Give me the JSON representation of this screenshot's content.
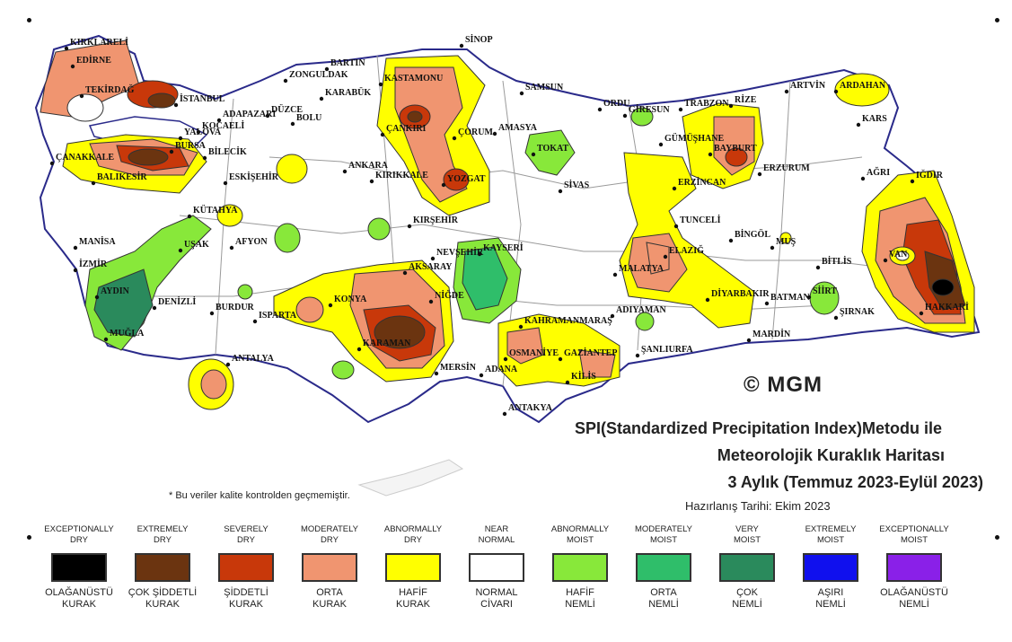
{
  "map": {
    "title_line1": "SPI(Standardized Precipitation Index)Metodu ile",
    "title_line2": "Meteorolojik Kuraklık Haritası",
    "title_line3": "3 Aylık (Temmuz 2023-Eylül 2023)",
    "prepared_date": "Hazırlanış Tarihi: Ekim 2023",
    "note": "* Bu veriler kalite kontrolden geçmemiştir.",
    "copyright": "© MGM",
    "cities": [
      {
        "name": "KIRKLARELİ"
      },
      {
        "name": "EDİRNE"
      },
      {
        "name": "TEKİRDAĞ"
      },
      {
        "name": "İSTANBUL"
      },
      {
        "name": "YALOVA"
      },
      {
        "name": "KOCAELİ"
      },
      {
        "name": "BURSA"
      },
      {
        "name": "ÇANAKKALE"
      },
      {
        "name": "BALIKESİR"
      },
      {
        "name": "BİLECİK"
      },
      {
        "name": "ADAPAZARI"
      },
      {
        "name": "DÜZCE"
      },
      {
        "name": "BOLU"
      },
      {
        "name": "BARTIN"
      },
      {
        "name": "ZONGULDAK"
      },
      {
        "name": "KARABÜK"
      },
      {
        "name": "KASTAMONU"
      },
      {
        "name": "SİNOP"
      },
      {
        "name": "ÇANKIRI"
      },
      {
        "name": "ÇORUM"
      },
      {
        "name": "AMASYA"
      },
      {
        "name": "SAMSUN"
      },
      {
        "name": "TOKAT"
      },
      {
        "name": "ORDU"
      },
      {
        "name": "GİRESUN"
      },
      {
        "name": "TRABZON"
      },
      {
        "name": "RİZE"
      },
      {
        "name": "ARTVİN"
      },
      {
        "name": "ARDAHAN"
      },
      {
        "name": "KARS"
      },
      {
        "name": "GÜMÜŞHANE"
      },
      {
        "name": "BAYBURT"
      },
      {
        "name": "ERZURUM"
      },
      {
        "name": "AĞRI"
      },
      {
        "name": "IĞDIR"
      },
      {
        "name": "ERZİNCAN"
      },
      {
        "name": "SİVAS"
      },
      {
        "name": "YOZGAT"
      },
      {
        "name": "KIRIKKALE"
      },
      {
        "name": "ANKARA"
      },
      {
        "name": "ESKİŞEHİR"
      },
      {
        "name": "KÜTAHYA"
      },
      {
        "name": "MANİSA"
      },
      {
        "name": "İZMİR"
      },
      {
        "name": "UŞAK"
      },
      {
        "name": "AFYON"
      },
      {
        "name": "AYDIN"
      },
      {
        "name": "DENİZLİ"
      },
      {
        "name": "MUĞLA"
      },
      {
        "name": "BURDUR"
      },
      {
        "name": "ISPARTA"
      },
      {
        "name": "KONYA"
      },
      {
        "name": "AKSARAY"
      },
      {
        "name": "KIRŞEHİR"
      },
      {
        "name": "NEVŞEHİR"
      },
      {
        "name": "KAYSERİ"
      },
      {
        "name": "NİĞDE"
      },
      {
        "name": "KARAMAN"
      },
      {
        "name": "ANTALYA"
      },
      {
        "name": "MERSİN"
      },
      {
        "name": "ADANA"
      },
      {
        "name": "OSMANİYE"
      },
      {
        "name": "KAHRAMANMARAŞ"
      },
      {
        "name": "GAZİANTEP"
      },
      {
        "name": "KİLİS"
      },
      {
        "name": "ANTAKYA"
      },
      {
        "name": "ADIYAMAN"
      },
      {
        "name": "ŞANLIURFA"
      },
      {
        "name": "MALATYA"
      },
      {
        "name": "ELAZIĞ"
      },
      {
        "name": "TUNCELİ"
      },
      {
        "name": "BİNGÖL"
      },
      {
        "name": "MUŞ"
      },
      {
        "name": "BİTLİS"
      },
      {
        "name": "VAN"
      },
      {
        "name": "DİYARBAKIR"
      },
      {
        "name": "BATMAN"
      },
      {
        "name": "SİİRT"
      },
      {
        "name": "ŞIRNAK"
      },
      {
        "name": "HAKKARİ"
      },
      {
        "name": "MARDİN"
      }
    ],
    "colors": {
      "exceptionally_dry": "#000000",
      "extremely_dry": "#6b3410",
      "severely_dry": "#c8380a",
      "moderately_dry": "#f09570",
      "abnormally_dry": "#ffff00",
      "near_normal": "#ffffff",
      "abnormally_moist": "#88e83a",
      "moderately_moist": "#2fbe6a",
      "very_moist": "#2a8a5c",
      "extremely_moist": "#1010ee",
      "exceptionally_moist": "#8a20e8",
      "border": "#2a2a8a",
      "province_line": "#9a9a9a"
    }
  },
  "legend": [
    {
      "en": "EXCEPTIONALLY\nDRY",
      "tr": "OLAĞANÜSTÜ\nKURAK",
      "color": "#000000"
    },
    {
      "en": "EXTREMELY\nDRY",
      "tr": "ÇOK ŞİDDETLİ\nKURAK",
      "color": "#6b3410"
    },
    {
      "en": "SEVERELY\nDRY",
      "tr": "ŞİDDETLİ\nKURAK",
      "color": "#c8380a"
    },
    {
      "en": "MODERATELY\nDRY",
      "tr": "ORTA\nKURAK",
      "color": "#f09570"
    },
    {
      "en": "ABNORMALLY\nDRY",
      "tr": "HAFİF\nKURAK",
      "color": "#ffff00"
    },
    {
      "en": "NEAR\nNORMAL",
      "tr": "NORMAL\nCİVARI",
      "color": "#ffffff"
    },
    {
      "en": "ABNORMALLY\nMOIST",
      "tr": "HAFİF\nNEMLİ",
      "color": "#88e83a"
    },
    {
      "en": "MODERATELY\nMOIST",
      "tr": "ORTA\nNEMLİ",
      "color": "#2fbe6a"
    },
    {
      "en": "VERY\nMOIST",
      "tr": "ÇOK\nNEMLİ",
      "color": "#2a8a5c"
    },
    {
      "en": "EXTREMELY\nMOIST",
      "tr": "AŞIRI\nNEMLİ",
      "color": "#1010ee"
    },
    {
      "en": "EXCEPTIONALLY\nMOIST",
      "tr": "OLAĞANÜSTÜ\nNEMLİ",
      "color": "#8a20e8"
    }
  ]
}
